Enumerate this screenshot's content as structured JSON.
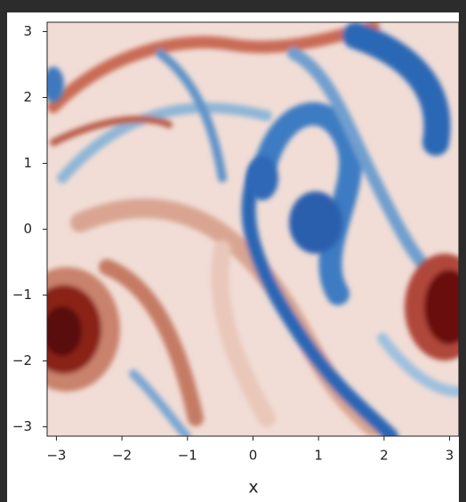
{
  "chart_data": {
    "type": "image",
    "xlabel": "x",
    "xlim": [
      -3.1416,
      3.1416
    ],
    "ylim": [
      -3.1416,
      3.1416
    ],
    "xticks": [
      {
        "value": -3,
        "label": "−3"
      },
      {
        "value": -2,
        "label": "−2"
      },
      {
        "value": -1,
        "label": "−1"
      },
      0,
      1,
      2,
      3
    ],
    "yticks": [
      {
        "value": -3,
        "label": "−3"
      },
      {
        "value": -2,
        "label": "−2"
      },
      {
        "value": -1,
        "label": "−1"
      },
      0,
      1,
      2,
      3
    ]
  }
}
